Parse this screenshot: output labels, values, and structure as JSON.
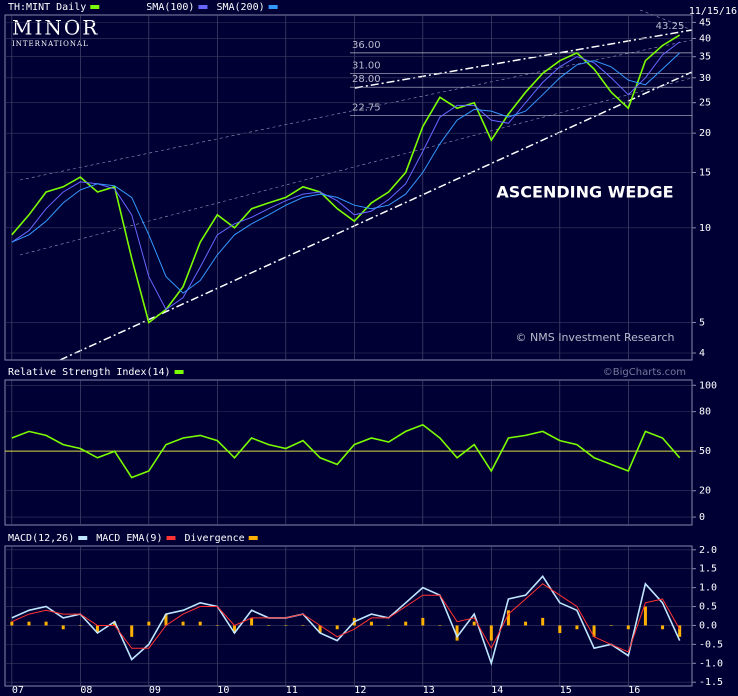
{
  "logo": {
    "name": "MINOR",
    "sub": "INTERNATIONAL"
  },
  "date": "11/15/16",
  "watermark": "©BigCharts.com",
  "chart_data": [
    {
      "type": "line",
      "log_scale": true,
      "annotations": [
        "ASCENDING WEDGE",
        "© NMS Investment Research"
      ],
      "peak": {
        "value": 43.25,
        "label": "43.25"
      },
      "levels": [
        {
          "value": 36,
          "label": "36.00"
        },
        {
          "value": 31,
          "label": "31.00"
        },
        {
          "value": 28,
          "label": "28.00"
        },
        {
          "value": 22.75,
          "label": "22.75"
        }
      ],
      "xlim": [
        2006.9,
        2016.93
      ],
      "ylim": [
        3.8,
        47.5
      ],
      "yticks": [
        4,
        5,
        10,
        15,
        20,
        25,
        30,
        35,
        40,
        45
      ],
      "x": [
        2007.0,
        2007.25,
        2007.5,
        2007.75,
        2008.0,
        2008.25,
        2008.5,
        2008.75,
        2009.0,
        2009.25,
        2009.5,
        2009.75,
        2010.0,
        2010.25,
        2010.5,
        2010.75,
        2011.0,
        2011.25,
        2011.5,
        2011.75,
        2012.0,
        2012.25,
        2012.5,
        2012.75,
        2013.0,
        2013.25,
        2013.5,
        2013.75,
        2014.0,
        2014.25,
        2014.5,
        2014.75,
        2015.0,
        2015.25,
        2015.5,
        2015.75,
        2016.0,
        2016.25,
        2016.5,
        2016.75
      ],
      "series": [
        {
          "name": "TH:MINT Daily",
          "color": "#7cfc00",
          "values": [
            9.5,
            11,
            13,
            13.5,
            14.5,
            13,
            13.5,
            8,
            5,
            5.5,
            6.5,
            9,
            11,
            10,
            11.5,
            12,
            12.5,
            13.5,
            13,
            11.5,
            10.5,
            12,
            13,
            15,
            21,
            26,
            24,
            25,
            19,
            23,
            27,
            31,
            34,
            36,
            32,
            27,
            24,
            34,
            38,
            41
          ]
        },
        {
          "name": "SMA(100)",
          "color": "#6666ff",
          "values": [
            9,
            9.8,
            11.5,
            13,
            14,
            13.8,
            13.3,
            11,
            7,
            5.5,
            6,
            7.5,
            9.5,
            10.3,
            10.8,
            11.5,
            12.2,
            12.8,
            13,
            12.2,
            11,
            11.3,
            12.3,
            13.8,
            17.5,
            22.5,
            24.5,
            24.5,
            22,
            21.5,
            25,
            29,
            32.5,
            35,
            33.5,
            30,
            26.5,
            30,
            35.5,
            39
          ]
        },
        {
          "name": "SMA(200)",
          "color": "#3399ff",
          "values": [
            9,
            9.5,
            10.5,
            12,
            13.2,
            13.8,
            13.6,
            12.5,
            9.5,
            7,
            6.2,
            6.8,
            8.2,
            9.5,
            10.3,
            11,
            11.8,
            12.5,
            12.8,
            12.5,
            11.8,
            11.5,
            11.8,
            12.8,
            15,
            18.5,
            22,
            23.8,
            23.5,
            22.5,
            23.5,
            26.5,
            30,
            33,
            34,
            32.5,
            29.5,
            28.5,
            32,
            36
          ]
        }
      ]
    },
    {
      "type": "line",
      "midline": 50,
      "xlim": [
        2006.9,
        2016.93
      ],
      "ylim": [
        -6,
        104
      ],
      "yticks": [
        0,
        20,
        50,
        80,
        100
      ],
      "x": [
        2007.0,
        2007.25,
        2007.5,
        2007.75,
        2008.0,
        2008.25,
        2008.5,
        2008.75,
        2009.0,
        2009.25,
        2009.5,
        2009.75,
        2010.0,
        2010.25,
        2010.5,
        2010.75,
        2011.0,
        2011.25,
        2011.5,
        2011.75,
        2012.0,
        2012.25,
        2012.5,
        2012.75,
        2013.0,
        2013.25,
        2013.5,
        2013.75,
        2014.0,
        2014.25,
        2014.5,
        2014.75,
        2015.0,
        2015.25,
        2015.5,
        2015.75,
        2016.0,
        2016.25,
        2016.5,
        2016.75
      ],
      "series": [
        {
          "name": "Relative Strength Index(14)",
          "color": "#7cfc00",
          "values": [
            60,
            65,
            62,
            55,
            52,
            45,
            50,
            30,
            35,
            55,
            60,
            62,
            58,
            45,
            60,
            55,
            52,
            58,
            45,
            40,
            55,
            60,
            57,
            65,
            70,
            60,
            45,
            55,
            35,
            60,
            62,
            65,
            58,
            55,
            45,
            40,
            35,
            65,
            60,
            45
          ]
        }
      ]
    },
    {
      "type": "line",
      "xlim": [
        2006.9,
        2016.93
      ],
      "ylim": [
        -1.6,
        2.1
      ],
      "yticks": [
        {
          "value": 2,
          "label": "2.0"
        },
        1.5,
        {
          "value": 1,
          "label": "1.0"
        },
        0.5,
        {
          "value": 0,
          "label": "0.0"
        },
        -0.5,
        {
          "value": -1,
          "label": "-1.0"
        },
        -1.5
      ],
      "xticks": [
        {
          "value": 2007,
          "label": "07"
        },
        {
          "value": 2008,
          "label": "08"
        },
        {
          "value": 2009,
          "label": "09"
        },
        {
          "value": 2010,
          "label": "10"
        },
        {
          "value": 2011,
          "label": "11"
        },
        {
          "value": 2012,
          "label": "12"
        },
        {
          "value": 2013,
          "label": "13"
        },
        {
          "value": 2014,
          "label": "14"
        },
        {
          "value": 2015,
          "label": "15"
        },
        {
          "value": 2016,
          "label": "16"
        }
      ],
      "x": [
        2007.0,
        2007.25,
        2007.5,
        2007.75,
        2008.0,
        2008.25,
        2008.5,
        2008.75,
        2009.0,
        2009.25,
        2009.5,
        2009.75,
        2010.0,
        2010.25,
        2010.5,
        2010.75,
        2011.0,
        2011.25,
        2011.5,
        2011.75,
        2012.0,
        2012.25,
        2012.5,
        2012.75,
        2013.0,
        2013.25,
        2013.5,
        2013.75,
        2014.0,
        2014.25,
        2014.5,
        2014.75,
        2015.0,
        2015.25,
        2015.5,
        2015.75,
        2016.0,
        2016.25,
        2016.5,
        2016.75
      ],
      "series": [
        {
          "name": "MACD(12,26)",
          "color": "#bfe6ff",
          "values": [
            0.2,
            0.4,
            0.5,
            0.2,
            0.3,
            -0.2,
            0.1,
            -0.9,
            -0.5,
            0.3,
            0.4,
            0.6,
            0.5,
            -0.2,
            0.4,
            0.2,
            0.2,
            0.3,
            -0.2,
            -0.4,
            0.1,
            0.3,
            0.2,
            0.6,
            1.0,
            0.8,
            -0.3,
            0.3,
            -1.0,
            0.7,
            0.8,
            1.3,
            0.6,
            0.4,
            -0.6,
            -0.5,
            -0.8,
            1.1,
            0.6,
            -0.4
          ]
        },
        {
          "name": "MACD EMA(9)",
          "color": "#ff3333",
          "values": [
            0.1,
            0.3,
            0.4,
            0.3,
            0.3,
            0.0,
            0.0,
            -0.6,
            -0.6,
            0.0,
            0.3,
            0.5,
            0.5,
            0.0,
            0.2,
            0.2,
            0.2,
            0.3,
            0.0,
            -0.3,
            -0.1,
            0.2,
            0.2,
            0.5,
            0.8,
            0.8,
            0.1,
            0.2,
            -0.6,
            0.3,
            0.7,
            1.1,
            0.8,
            0.5,
            -0.3,
            -0.5,
            -0.7,
            0.6,
            0.7,
            -0.1
          ]
        },
        {
          "name": "Divergence",
          "color": "#ffb000",
          "type": "bar",
          "values": [
            0.1,
            0.1,
            0.1,
            -0.1,
            0,
            -0.2,
            0.1,
            -0.3,
            0.1,
            0.3,
            0.1,
            0.1,
            0,
            -0.2,
            0.2,
            0,
            0,
            0,
            -0.2,
            -0.1,
            0.2,
            0.1,
            0,
            0.1,
            0.2,
            0,
            -0.4,
            0.1,
            -0.4,
            0.4,
            0.1,
            0.2,
            -0.2,
            -0.1,
            -0.3,
            0,
            -0.1,
            0.5,
            -0.1,
            -0.3
          ]
        }
      ]
    }
  ]
}
